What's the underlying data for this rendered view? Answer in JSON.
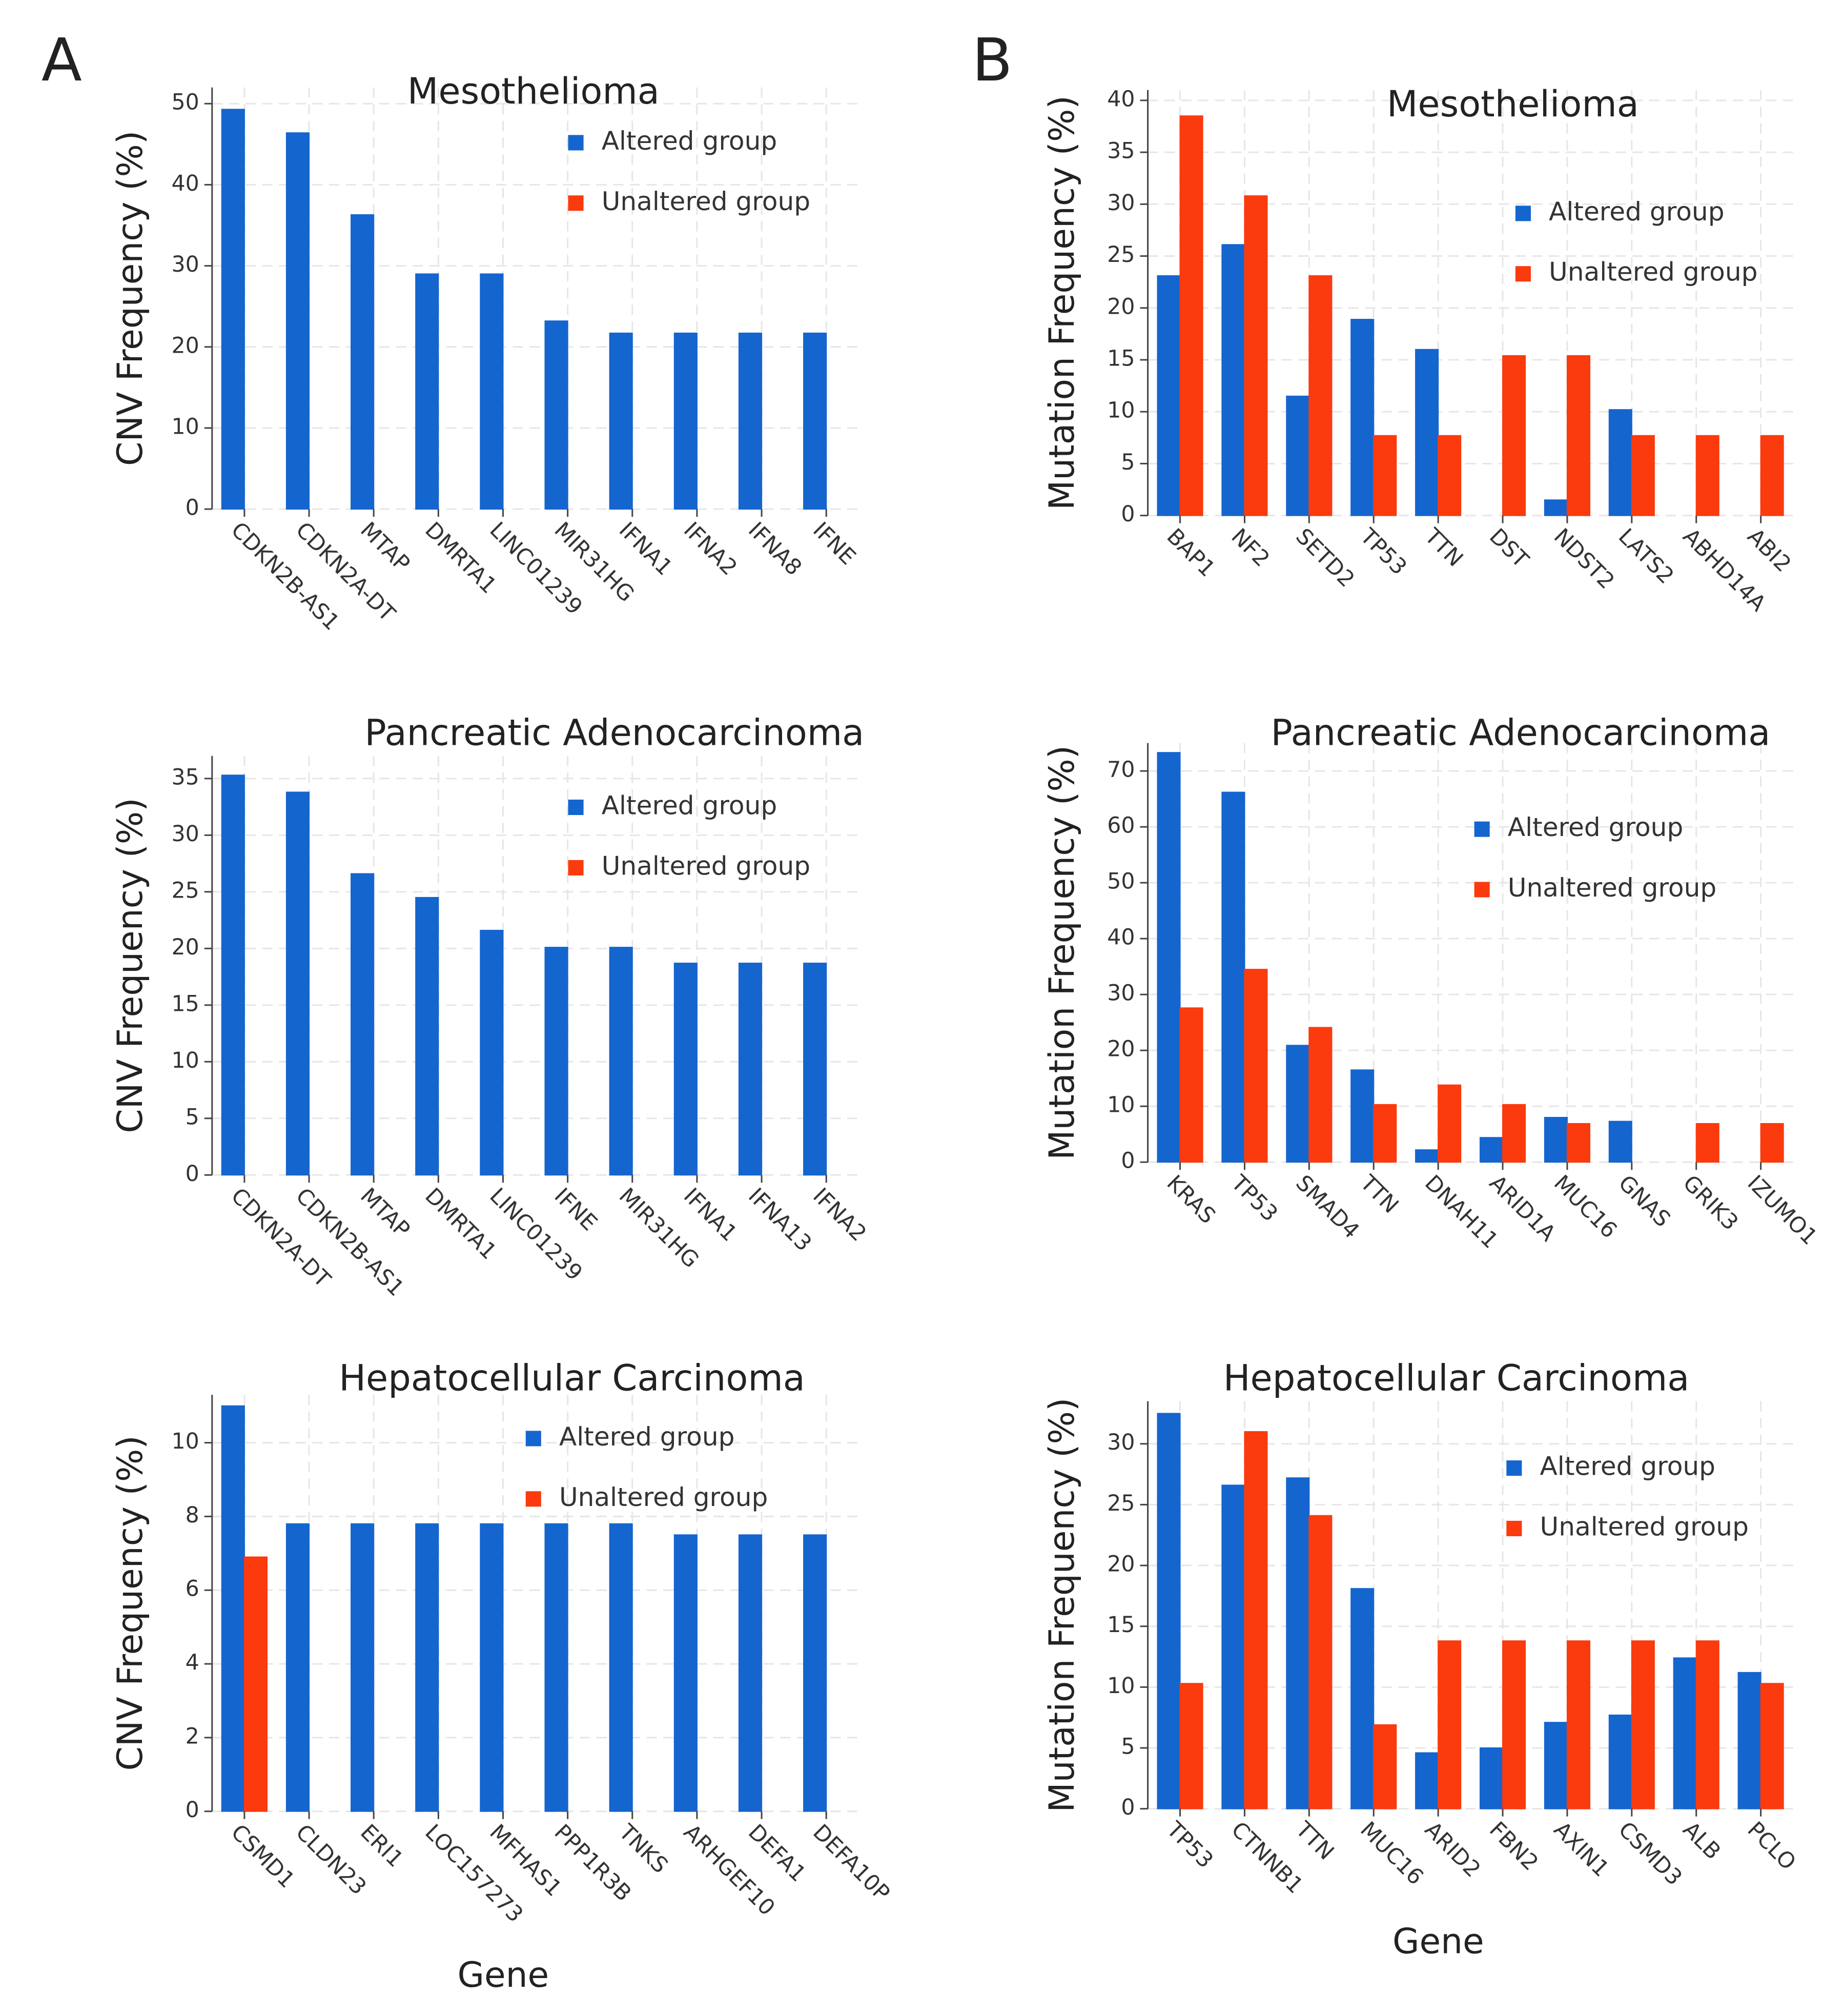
{
  "panel_labels": [
    "A",
    "B"
  ],
  "chart_data": [
    {
      "type": "bar",
      "title": "Mesothelioma",
      "ylabel": "CNV Frequency (%)",
      "categories": [
        "CDKN2B-AS1",
        "CDKN2A-DT",
        "MTAP",
        "DMRTA1",
        "LINC01239",
        "MIR31HG",
        "IFNA1",
        "IFNA2",
        "IFNA8",
        "IFNE"
      ],
      "series": [
        {
          "name": "Altered group",
          "color": "#1565cf",
          "values": [
            49.3,
            46.4,
            36.3,
            29.0,
            29.0,
            23.2,
            21.7,
            21.7,
            21.7,
            21.7
          ]
        },
        {
          "name": "Unaltered group",
          "color": "#fb3a0e",
          "values": [
            0,
            0,
            0,
            0,
            0,
            0,
            0,
            0,
            0,
            0
          ]
        }
      ],
      "ylim": [
        0,
        52
      ],
      "yticks": [
        0,
        10,
        20,
        30,
        40,
        50
      ],
      "grid": true
    },
    {
      "type": "bar",
      "title": "Pancreatic Adenocarcinoma",
      "ylabel": "CNV Frequency (%)",
      "categories": [
        "CDKN2A-DT",
        "CDKN2B-AS1",
        "MTAP",
        "DMRTA1",
        "LINC01239",
        "IFNE",
        "MIR31HG",
        "IFNA1",
        "IFNA13",
        "IFNA2"
      ],
      "series": [
        {
          "name": "Altered group",
          "color": "#1565cf",
          "values": [
            35.3,
            33.8,
            26.6,
            24.5,
            21.6,
            20.1,
            20.1,
            18.7,
            18.7,
            18.7
          ]
        },
        {
          "name": "Unaltered group",
          "color": "#fb3a0e",
          "values": [
            0,
            0,
            0,
            0,
            0,
            0,
            0,
            0,
            0,
            0
          ]
        }
      ],
      "ylim": [
        0,
        37
      ],
      "yticks": [
        0,
        5,
        10,
        15,
        20,
        25,
        30,
        35
      ],
      "grid": true
    },
    {
      "type": "bar",
      "title": "Hepatocellular Carcinoma",
      "ylabel": "CNV Frequency (%)",
      "xlabel": "Gene",
      "categories": [
        "CSMD1",
        "CLDN23",
        "ERI1",
        "LOC157273",
        "MFHAS1",
        "PPP1R3B",
        "TNKS",
        "ARHGEF10",
        "DEFA1",
        "DEFA10P"
      ],
      "series": [
        {
          "name": "Altered group",
          "color": "#1565cf",
          "values": [
            11.0,
            7.8,
            7.8,
            7.8,
            7.8,
            7.8,
            7.8,
            7.5,
            7.5,
            7.5
          ]
        },
        {
          "name": "Unaltered group",
          "color": "#fb3a0e",
          "values": [
            6.9,
            0,
            0,
            0,
            0,
            0,
            0,
            0,
            0,
            0
          ]
        }
      ],
      "ylim": [
        0,
        11.3
      ],
      "yticks": [
        0,
        2,
        4,
        6,
        8,
        10
      ],
      "grid": true
    },
    {
      "type": "bar",
      "title": "Mesothelioma",
      "ylabel": "Mutation Frequency (%)",
      "categories": [
        "BAP1",
        "NF2",
        "SETD2",
        "TP53",
        "TTN",
        "DST",
        "NDST2",
        "LATS2",
        "ABHD14A",
        "ABI2"
      ],
      "series": [
        {
          "name": "Altered group",
          "color": "#1565cf",
          "values": [
            23.1,
            26.1,
            11.5,
            18.9,
            16.0,
            0,
            1.5,
            10.2,
            0,
            0
          ]
        },
        {
          "name": "Unaltered group",
          "color": "#fb3a0e",
          "values": [
            38.5,
            30.8,
            23.1,
            7.7,
            7.7,
            15.4,
            15.4,
            7.7,
            7.7,
            7.7
          ]
        }
      ],
      "ylim": [
        0,
        41
      ],
      "yticks": [
        0,
        5,
        10,
        15,
        20,
        25,
        30,
        35,
        40
      ],
      "grid": true
    },
    {
      "type": "bar",
      "title": "Pancreatic Adenocarcinoma",
      "ylabel": "Mutation Frequency (%)",
      "categories": [
        "KRAS",
        "TP53",
        "SMAD4",
        "TTN",
        "DNAH11",
        "ARID1A",
        "MUC16",
        "GNAS",
        "GRIK3",
        "IZUMO1"
      ],
      "series": [
        {
          "name": "Altered group",
          "color": "#1565cf",
          "values": [
            73.3,
            66.2,
            20.9,
            16.5,
            2.2,
            4.4,
            8.0,
            7.3,
            0,
            0
          ]
        },
        {
          "name": "Unaltered group",
          "color": "#fb3a0e",
          "values": [
            27.6,
            34.5,
            24.1,
            10.3,
            13.8,
            10.3,
            6.9,
            0,
            6.9,
            6.9
          ]
        }
      ],
      "ylim": [
        0,
        75
      ],
      "yticks": [
        0,
        10,
        20,
        30,
        40,
        50,
        60,
        70
      ],
      "grid": true
    },
    {
      "type": "bar",
      "title": "Hepatocellular Carcinoma",
      "ylabel": "Mutation Frequency (%)",
      "xlabel": "Gene",
      "categories": [
        "TP53",
        "CTNNB1",
        "TTN",
        "MUC16",
        "ARID2",
        "FBN2",
        "AXIN1",
        "CSMD3",
        "ALB",
        "PCLO"
      ],
      "series": [
        {
          "name": "Altered group",
          "color": "#1565cf",
          "values": [
            32.5,
            26.6,
            27.2,
            18.1,
            4.6,
            5.0,
            7.1,
            7.7,
            12.4,
            11.2
          ]
        },
        {
          "name": "Unaltered group",
          "color": "#fb3a0e",
          "values": [
            10.3,
            31.0,
            24.1,
            6.9,
            13.8,
            13.8,
            13.8,
            13.8,
            13.8,
            10.3
          ]
        }
      ],
      "ylim": [
        0,
        33.5
      ],
      "yticks": [
        0,
        5,
        10,
        15,
        20,
        25,
        30
      ],
      "grid": true
    }
  ]
}
